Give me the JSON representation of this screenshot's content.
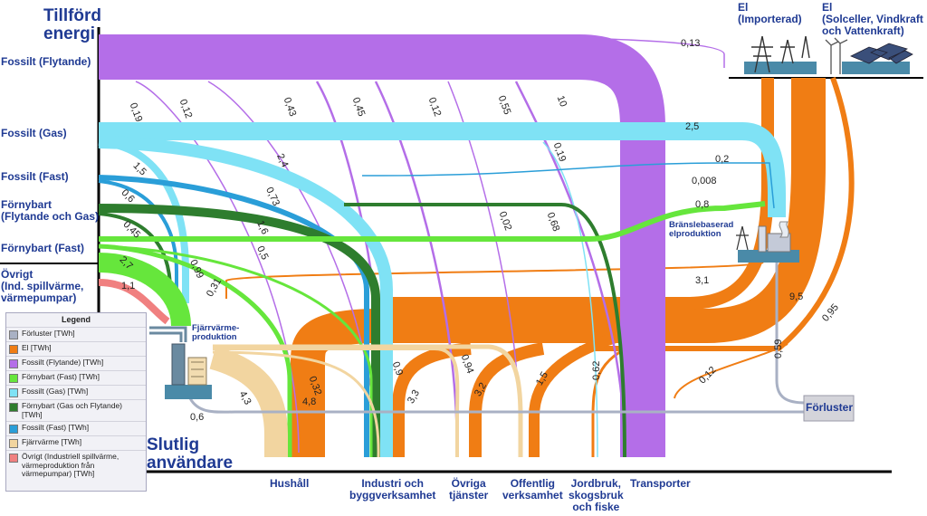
{
  "header": {
    "supplied": "Tillförd\nenergi",
    "final_user": "Slutlig\nanvändare"
  },
  "sources": {
    "fossil_liquid": "Fossilt (Flytande)",
    "fossil_gas": "Fossilt (Gas)",
    "fossil_solid": "Fossilt (Fast)",
    "renew_liquid_gas": "Förnybart\n(Flytande och Gas)",
    "renew_solid": "Förnybart (Fast)",
    "other": "Övrigt\n(Ind. spillvärme,\nvärmepumpar)",
    "el_import": "El\n(Importerad)",
    "el_renew": "El\n(Solceller, Vindkraft\noch Vattenkraft)"
  },
  "nodes": {
    "district_heating": "Fjärrvärme-\nproduktion",
    "fuel_power": "Bränslebaserad\nelproduktion",
    "losses": "Förluster"
  },
  "sinks": {
    "households": "Hushåll",
    "industry": "Industri och\nbyggverksamhet",
    "other_services": "Övriga\ntjänster",
    "public": "Offentlig\nverksamhet",
    "agriculture": "Jordbruk,\nskogsbruk\noch fiske",
    "transport": "Transporter"
  },
  "legend": {
    "title": "Legend",
    "items": [
      {
        "label": "Förluster [TWh]",
        "color": "#a9b1c4"
      },
      {
        "label": "El [TWh]",
        "color": "#f07d14"
      },
      {
        "label": "Fossilt (Flytande) [TWh]",
        "color": "#b46ee8"
      },
      {
        "label": "Förnybart (Fast) [TWh]",
        "color": "#66e63c"
      },
      {
        "label": "Fossilt (Gas) [TWh]",
        "color": "#7fe2f5"
      },
      {
        "label": "Förnybart (Gas och Flytande) [TWh]",
        "color": "#2e7d2e"
      },
      {
        "label": "Fossilt (Fast) [TWh]",
        "color": "#2a9ed8"
      },
      {
        "label": "Fjärrvärme [TWh]",
        "color": "#f2d5a0"
      },
      {
        "label": "Övrigt (Industriell spillvärme, värmeproduktion från värmepumpar) [TWh]",
        "color": "#f08080"
      }
    ]
  },
  "flows": {
    "fl_transport": "10",
    "fl_eltop": "0,13",
    "fl_hh": "0,19",
    "fl_ind": "0,12",
    "fl_ot": "0,43",
    "fl_pub": "0,45",
    "fl_agr": "0,12",
    "fl_tr2": "0,55",
    "gas_power": "2,5",
    "gas_tr": "0,19",
    "gas_hh": "1,5",
    "gas_ind": "2,4",
    "solid_power": "0,2",
    "solid_hh": "0,6",
    "solid_ind": "0,73",
    "solid_x": "0,008",
    "rlg_hh": "0,45",
    "rlg_ind": "1,6",
    "rlg_pub": "0,02",
    "rlg_agr": "0,68",
    "rsol_power": "0,8",
    "rsol_dh": "2,7",
    "rsol_hh": "0,99",
    "rsol_ind": "0,5",
    "other_dh": "1,1",
    "dh_loss": "0,31",
    "el_31": "3,1",
    "el_95": "9,5",
    "el_loss": "0,95",
    "loss_059": "0,59",
    "dh_hh": "4,3",
    "el_hh": "4,8",
    "dh_ind": "0,32",
    "dh_ot": "0,9",
    "el_ot": "3,3",
    "dh_pub": "0,94",
    "el_pub": "3,2",
    "el_agr": "1,5",
    "el_agr2": "0,62",
    "el_tr": "0,12",
    "dh_06": "0,6"
  }
}
